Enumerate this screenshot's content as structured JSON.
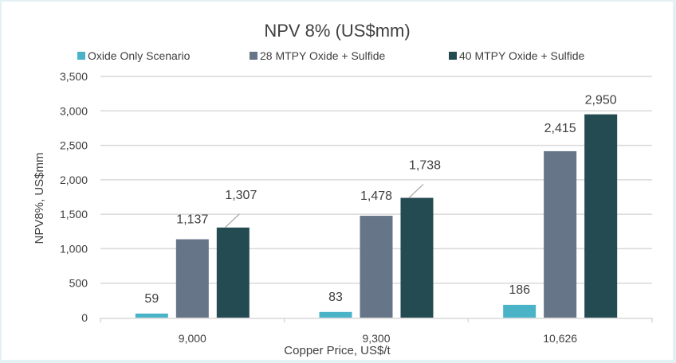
{
  "chart_data": {
    "type": "bar",
    "title": "NPV 8% (US$mm)",
    "xlabel": "Copper Price, US$/t",
    "ylabel": "NPV8%, US$mm",
    "ylim": [
      0,
      3500
    ],
    "yticks": [
      0,
      500,
      1000,
      1500,
      2000,
      2500,
      3000,
      3500
    ],
    "ytick_labels": [
      "0",
      "500",
      "1,000",
      "1,500",
      "2,000",
      "2,500",
      "3,000",
      "3,500"
    ],
    "categories": [
      "9,000",
      "9,300",
      "10,626"
    ],
    "grid": true,
    "legend_placement": "top",
    "series": [
      {
        "name": "Oxide Only Scenario",
        "color": "#4bb3c8",
        "values": [
          59,
          83,
          186
        ],
        "labels": [
          "59",
          "83",
          "186"
        ]
      },
      {
        "name": "28 MTPY Oxide + Sulfide",
        "color": "#667587",
        "values": [
          1137,
          1478,
          2415
        ],
        "labels": [
          "1,137",
          "1,478",
          "2,415"
        ]
      },
      {
        "name": "40 MTPY Oxide + Sulfide",
        "color": "#244a52",
        "values": [
          1307,
          1738,
          2950
        ],
        "labels": [
          "1,307",
          "1,738",
          "2,950"
        ]
      }
    ]
  }
}
